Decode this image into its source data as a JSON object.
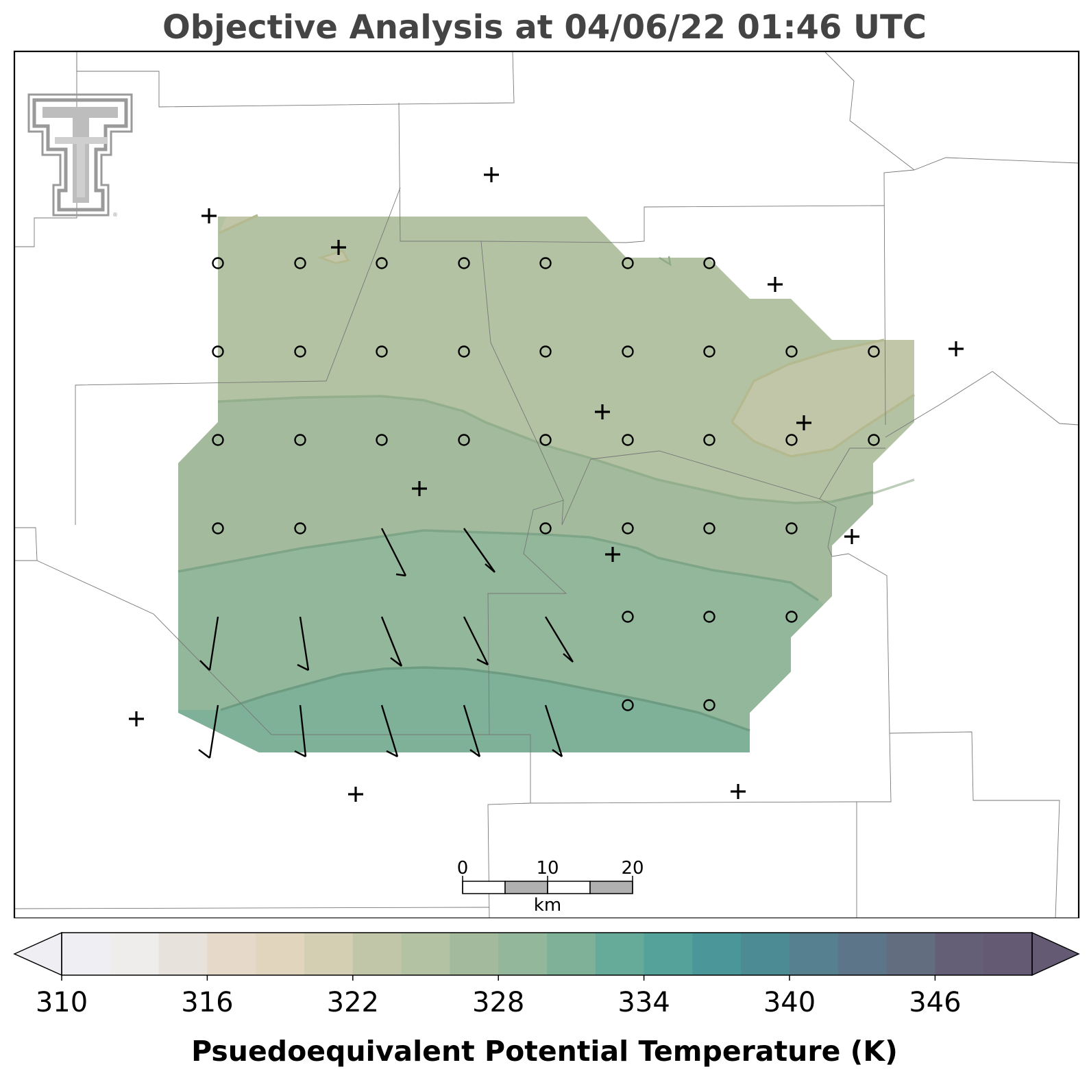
{
  "title": "Objective Analysis at 04/06/22 01:46 UTC",
  "colorbar": {
    "label": "Psuedoequivalent Potential Temperature (K)",
    "min": 310,
    "max": 350,
    "step": 2,
    "tick_values": [
      "310",
      "316",
      "322",
      "328",
      "334",
      "340",
      "346"
    ],
    "colors": [
      "#efeff3",
      "#efecec",
      "#e8e2dd",
      "#e6d9c9",
      "#e2d5be",
      "#d4ceb2",
      "#c2c6a8",
      "#b2c2a2",
      "#a3bb9c",
      "#93b79a",
      "#7fb199",
      "#66aa99",
      "#55a29b",
      "#4b9699",
      "#4c8a94",
      "#56808f",
      "#5d7588",
      "#636d80",
      "#645f77",
      "#655a73"
    ],
    "extend": "both"
  },
  "scalebar": {
    "labels": [
      "0",
      "10",
      "20"
    ],
    "unit": "km"
  },
  "analysis": {
    "field": "Psuedoequivalent Potential Temperature",
    "contour_levels_K": [
      320,
      322,
      324,
      326,
      328
    ],
    "station_marker": "+",
    "calm_marker": "o",
    "wind_barbs": "10 kt barbs, northerly-northwesterly over southern part of domain"
  },
  "logo": {
    "name": "texas-tech-double-t-logo"
  }
}
